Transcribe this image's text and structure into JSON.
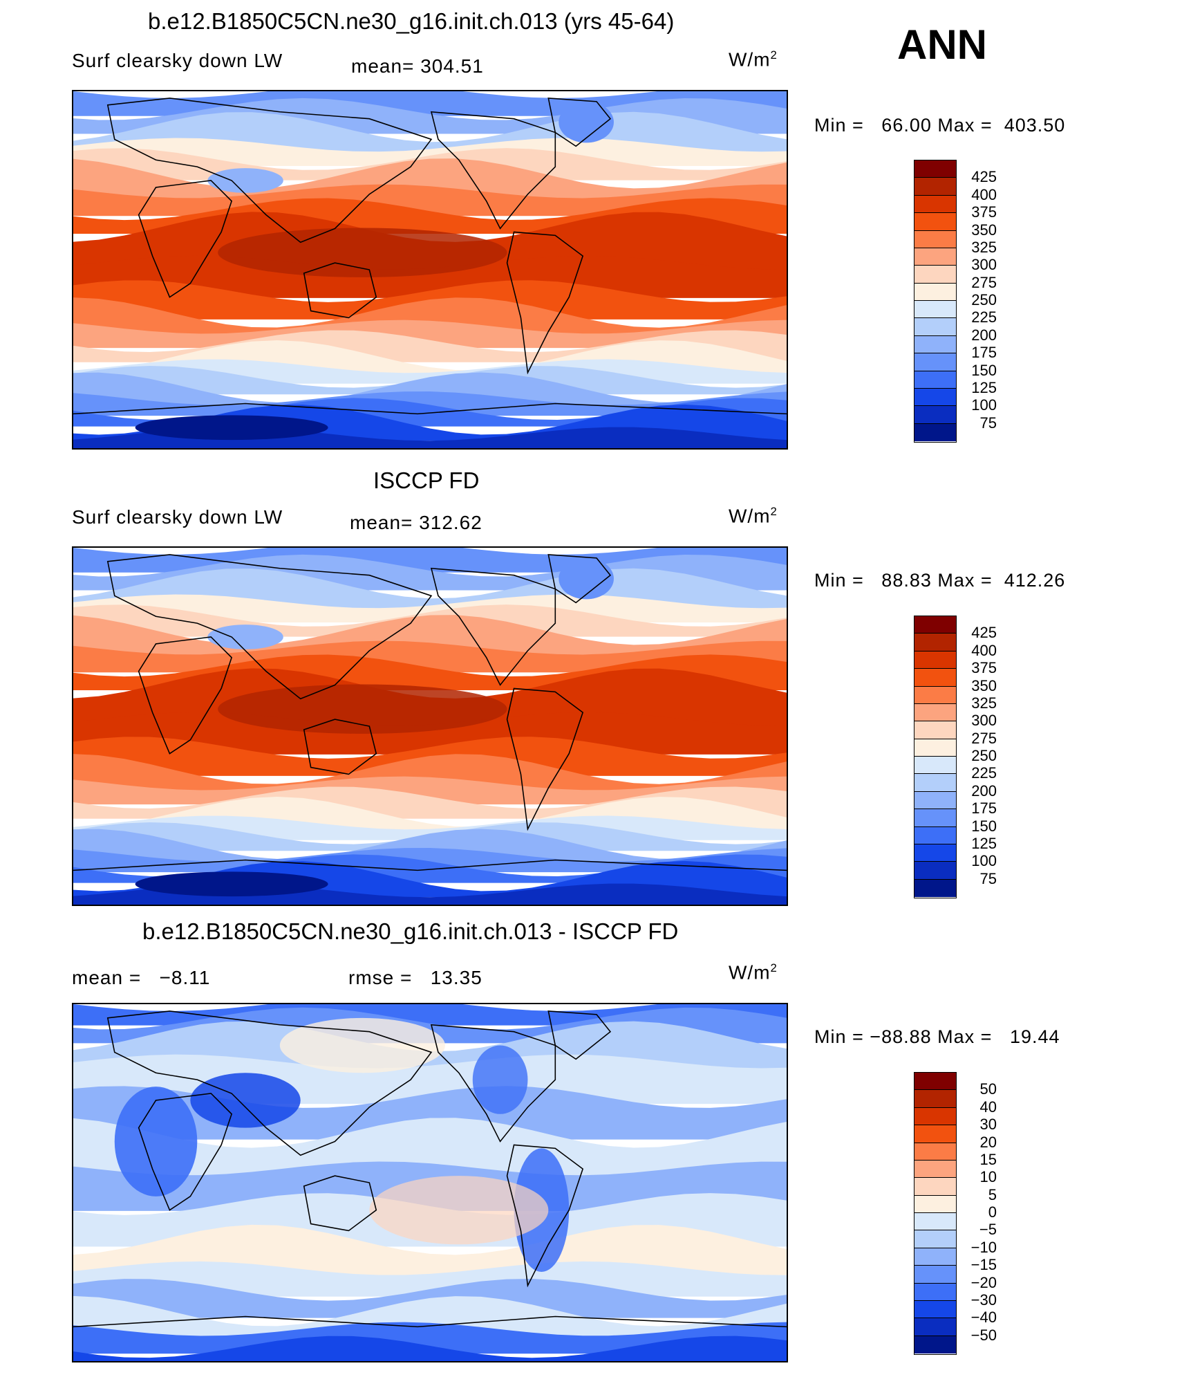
{
  "annual_label": "ANN",
  "units": "W/m",
  "units_sup": "2",
  "colors_abs": [
    "#7f0000",
    "#b22400",
    "#d93500",
    "#f2520f",
    "#fb7c46",
    "#fca47f",
    "#fdd6bf",
    "#fdf0e0",
    "#d8e8fa",
    "#b3cffa",
    "#8fb2fa",
    "#6692fa",
    "#3d6ff7",
    "#1547e8",
    "#0a2dc0",
    "#00168a"
  ],
  "colors_diff": [
    "#7f0000",
    "#b22400",
    "#d93500",
    "#f2520f",
    "#fb7c46",
    "#fca47f",
    "#fdd6bf",
    "#fdf0e0",
    "#d8e8fa",
    "#b3cffa",
    "#8fb2fa",
    "#6692fa",
    "#3d6ff7",
    "#1547e8",
    "#0a2dc0",
    "#00168a"
  ],
  "chart_data": [
    {
      "type": "heatmap",
      "title": "b.e12.B1850C5CN.ne30_g16.init.ch.013 (yrs 45-64)",
      "variable": "Surf clearsky down LW",
      "mean_label": "mean=",
      "mean": "304.51",
      "min_label": "Min =",
      "min": "66.00",
      "max_label": "Max =",
      "max": "403.50",
      "levels": [
        "425",
        "400",
        "375",
        "350",
        "325",
        "300",
        "275",
        "250",
        "225",
        "200",
        "175",
        "150",
        "125",
        "100",
        "75"
      ]
    },
    {
      "type": "heatmap",
      "title": "ISCCP FD",
      "variable": "Surf clearsky down LW",
      "mean_label": "mean=",
      "mean": "312.62",
      "min_label": "Min =",
      "min": "88.83",
      "max_label": "Max =",
      "max": "412.26",
      "levels": [
        "425",
        "400",
        "375",
        "350",
        "325",
        "300",
        "275",
        "250",
        "225",
        "200",
        "175",
        "150",
        "125",
        "100",
        "75"
      ]
    },
    {
      "type": "heatmap",
      "title": "b.e12.B1850C5CN.ne30_g16.init.ch.013 - ISCCP FD",
      "mean_label": "mean =",
      "mean": "−8.11",
      "rmse_label": "rmse =",
      "rmse": "13.35",
      "min_label": "Min =",
      "min": "−88.88",
      "max_label": "Max =",
      "max": "19.44",
      "levels": [
        "50",
        "40",
        "30",
        "20",
        "15",
        "10",
        "5",
        "0",
        "−5",
        "−10",
        "−15",
        "−20",
        "−30",
        "−40",
        "−50"
      ]
    }
  ]
}
